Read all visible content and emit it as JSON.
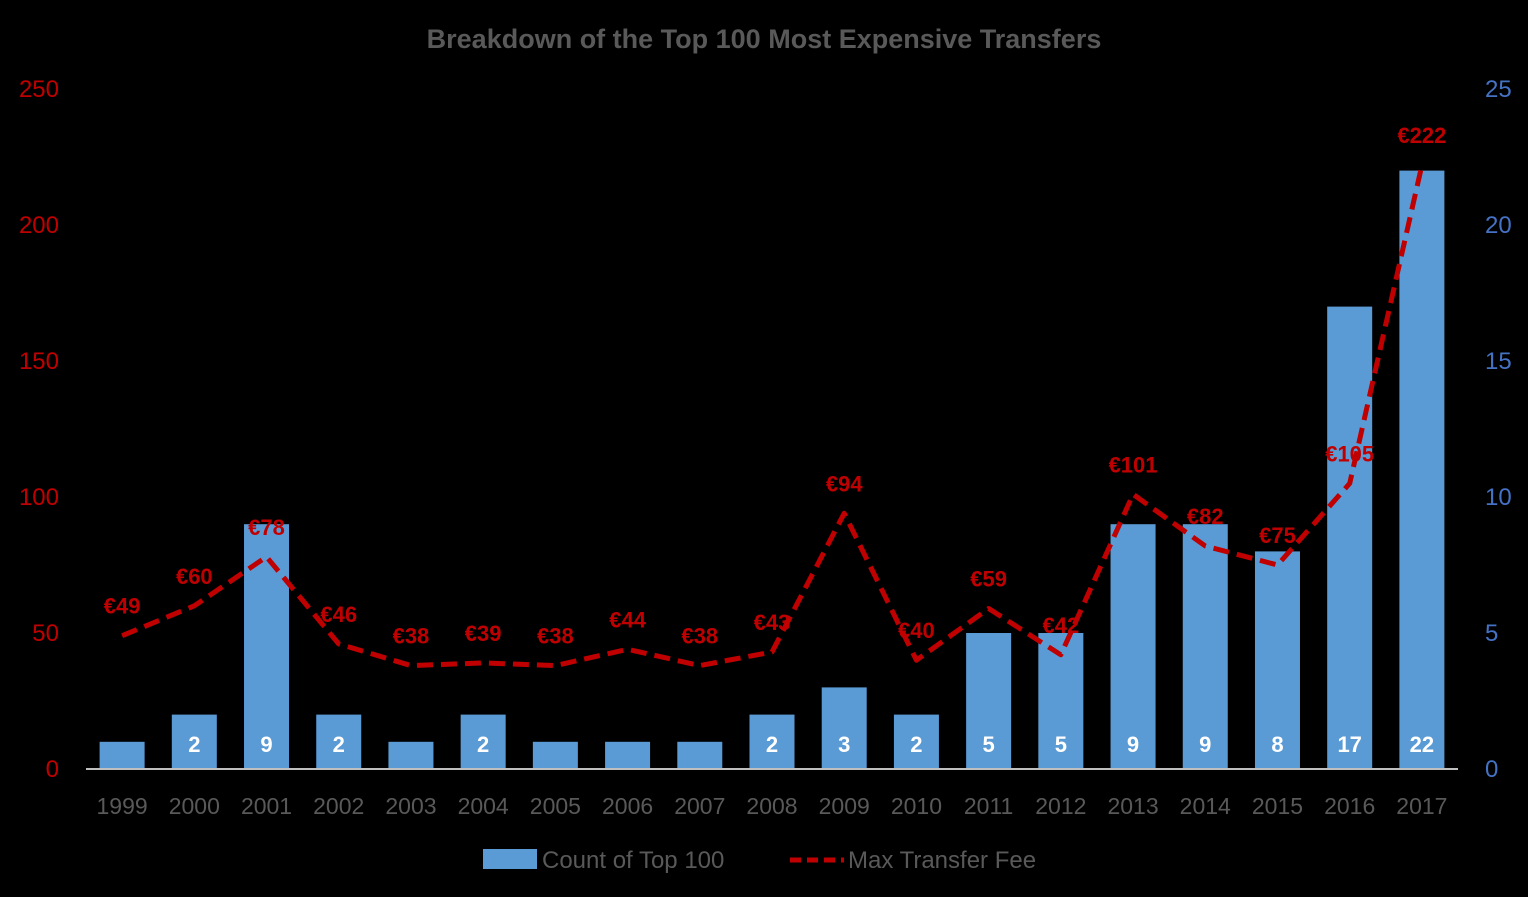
{
  "chart_data": {
    "type": "bar+line",
    "title": "Breakdown of the Top 100 Most Expensive Transfers",
    "categories": [
      "1999",
      "2000",
      "2001",
      "2002",
      "2003",
      "2004",
      "2005",
      "2006",
      "2007",
      "2008",
      "2009",
      "2010",
      "2011",
      "2012",
      "2013",
      "2014",
      "2015",
      "2016",
      "2017"
    ],
    "series": [
      {
        "name": "Count of Top 100",
        "type": "bar",
        "axis": "right",
        "color": "#5B9BD5",
        "values": [
          1,
          2,
          9,
          2,
          1,
          2,
          1,
          1,
          1,
          2,
          3,
          2,
          5,
          5,
          9,
          9,
          8,
          17,
          22
        ],
        "data_labels": [
          "",
          "2",
          "9",
          "2",
          "",
          "2",
          "",
          "",
          "",
          "2",
          "3",
          "2",
          "5",
          "5",
          "9",
          "9",
          "8",
          "17",
          "22"
        ]
      },
      {
        "name": "Max Transfer Fee",
        "type": "line",
        "style": "dashed",
        "axis": "left",
        "color": "#C00000",
        "values": [
          49,
          60,
          78,
          46,
          38,
          39,
          38,
          44,
          38,
          43,
          94,
          40,
          59,
          42,
          101,
          82,
          75,
          105,
          222
        ],
        "data_labels": [
          "€49",
          "€60",
          "€78",
          "€46",
          "€38",
          "€39",
          "€38",
          "€44",
          "€38",
          "€43",
          "€94",
          "€40",
          "€59",
          "€42",
          "€101",
          "€82",
          "€75",
          "€105",
          "€222"
        ]
      }
    ],
    "y_left": {
      "min": 0,
      "max": 250,
      "ticks": [
        "0",
        "50",
        "100",
        "150",
        "200",
        "250"
      ],
      "color": "#C00000"
    },
    "y_right": {
      "min": 0,
      "max": 25,
      "ticks": [
        "0",
        "5",
        "10",
        "15",
        "20",
        "25"
      ],
      "color": "#4472C4"
    },
    "grid": false,
    "legend_position": "bottom"
  }
}
